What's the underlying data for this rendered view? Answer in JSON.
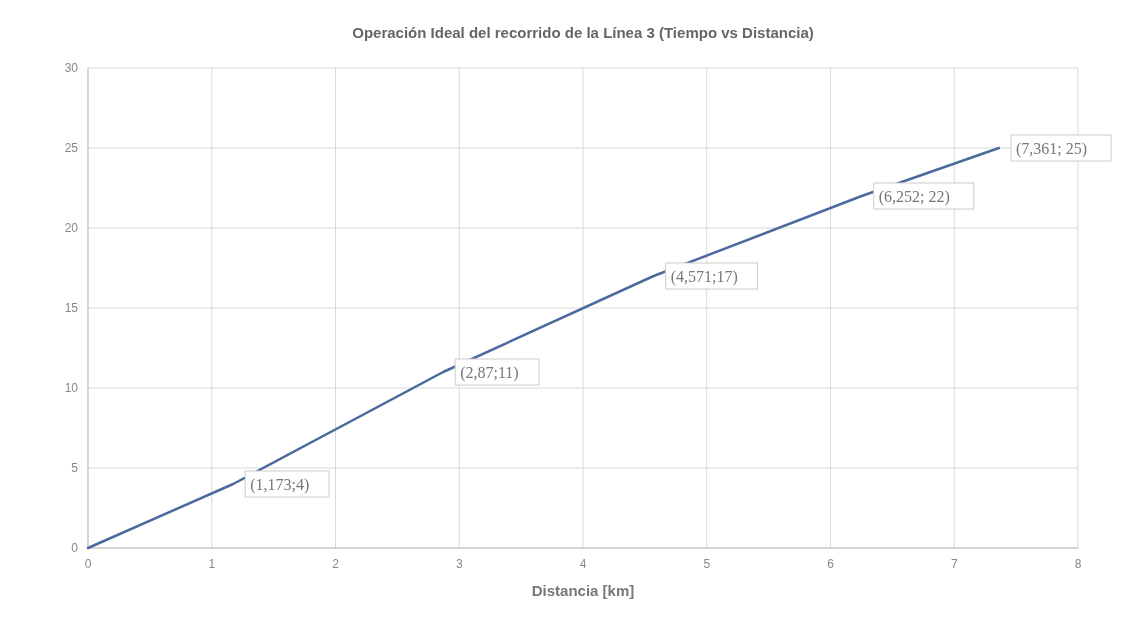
{
  "chart_data": {
    "type": "line",
    "title": "Operación Ideal del recorrido de la Línea 3 (Tiempo vs Distancia)",
    "xlabel": "Distancia [km]",
    "x": [
      0,
      1.173,
      2.87,
      4.571,
      6.252,
      7.361
    ],
    "series": [
      {
        "color": "#4a6a9e",
        "values": [
          0,
          4,
          11,
          17,
          22,
          25
        ],
        "value_labels": [
          null,
          "(1,173;4)",
          "(2,87;11)",
          "(4,571;17)",
          "(6,252; 22)",
          "(7,361; 25)"
        ]
      }
    ],
    "xlim": [
      0,
      8
    ],
    "xticks": [
      0,
      1,
      2,
      3,
      4,
      5,
      6,
      7,
      8
    ],
    "ylim": [
      0,
      30
    ],
    "yticks": [
      0,
      5,
      10,
      15,
      20,
      25,
      30
    ],
    "grid": true,
    "marker": "none",
    "line_style": "solid"
  }
}
